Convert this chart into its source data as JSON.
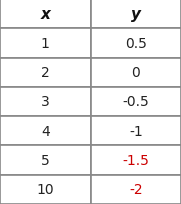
{
  "headers": [
    "x",
    "y"
  ],
  "rows": [
    [
      "1",
      "0.5"
    ],
    [
      "2",
      "0"
    ],
    [
      "3",
      "-0.5"
    ],
    [
      "4",
      "-1"
    ],
    [
      "5",
      "-1.5"
    ],
    [
      "10",
      "-2"
    ]
  ],
  "row_colors": [
    [
      "#222222",
      "#222222"
    ],
    [
      "#222222",
      "#222222"
    ],
    [
      "#222222",
      "#222222"
    ],
    [
      "#222222",
      "#222222"
    ],
    [
      "#222222",
      "#cc0000"
    ],
    [
      "#222222",
      "#cc0000"
    ]
  ],
  "bg_color": "#ffffff",
  "border_color": "#888888",
  "figsize": [
    1.81,
    2.05
  ],
  "dpi": 100,
  "header_fontsize": 11,
  "cell_fontsize": 10,
  "border_lw": 1.2
}
